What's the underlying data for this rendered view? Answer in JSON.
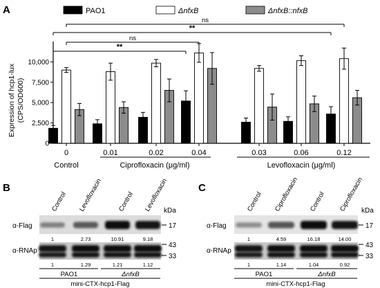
{
  "chart_data": {
    "type": "bar",
    "panel_label": "A",
    "ylabel_line1": "Expression of hcp1-lux",
    "ylabel_line2": "(CPS/OD600)",
    "ylim": [
      0,
      12500
    ],
    "yticks": [
      "0",
      "2,500",
      "5,000",
      "7,500",
      "10,000"
    ],
    "ytick_values": [
      0,
      2500,
      5000,
      7500,
      10000
    ],
    "categories": [
      "0",
      "0.01",
      "0.02",
      "0.04",
      "0.03",
      "0.06",
      "0.12"
    ],
    "control_label": "Control",
    "group_labels": [
      "Ciprofloxacin (μg/ml)",
      "Levofloxacin (μg/ml)"
    ],
    "series": [
      {
        "name": "PAO1",
        "color": "#000000",
        "values": [
          1850,
          2400,
          3200,
          5200,
          2600,
          2700,
          3600
        ],
        "errors": [
          350,
          500,
          600,
          1250,
          500,
          550,
          900
        ]
      },
      {
        "name": "ΔnfxB",
        "color": "#ffffff",
        "values": [
          9000,
          8800,
          9850,
          11100,
          9200,
          10150,
          10400
        ],
        "errors": [
          300,
          1050,
          450,
          1150,
          350,
          600,
          1300
        ]
      },
      {
        "name": "ΔnfxB::nfxB",
        "color": "#8c8c8c",
        "values": [
          4150,
          4400,
          6500,
          9200,
          4450,
          4850,
          5600
        ],
        "errors": [
          750,
          700,
          1400,
          1950,
          1600,
          950,
          900
        ]
      }
    ],
    "significance": [
      "**",
      "ns",
      "**",
      "ns"
    ],
    "grid": false,
    "legend_position": "top"
  },
  "blots": [
    {
      "panel_label": "B",
      "lanes": [
        "Control",
        "Levofloxacin",
        "Control",
        "Levofloxacin"
      ],
      "kda_label": "kDa",
      "flag_label": "α-Flag",
      "rnap_label": "α-RNAp",
      "flag_marker": "17",
      "rnap_markers": [
        "43",
        "33"
      ],
      "flag_values": [
        "1",
        "2.73",
        "10.91",
        "9.18"
      ],
      "flag_intensity": [
        0.25,
        0.5,
        1.0,
        0.95
      ],
      "rnap_values": [
        "1",
        "1.29",
        "1.21",
        "1.12"
      ],
      "strains": [
        "PAO1",
        "ΔnfxB"
      ],
      "construct": "mini-CTX-hcp1-Flag"
    },
    {
      "panel_label": "C",
      "lanes": [
        "Control",
        "Ciprofloxacin",
        "Control",
        "Ciprofloxacin"
      ],
      "kda_label": "kDa",
      "flag_label": "α-Flag",
      "rnap_label": "α-RNAp",
      "flag_marker": "17",
      "rnap_markers": [
        "43",
        "33"
      ],
      "flag_values": [
        "1",
        "4.59",
        "16.18",
        "14.00"
      ],
      "flag_intensity": [
        0.2,
        0.55,
        1.0,
        0.95
      ],
      "rnap_values": [
        "1",
        "1.14",
        "1.04",
        "0.92"
      ],
      "strains": [
        "PAO1",
        "ΔnfxB"
      ],
      "construct": "mini-CTX-hcp1-Flag"
    }
  ]
}
